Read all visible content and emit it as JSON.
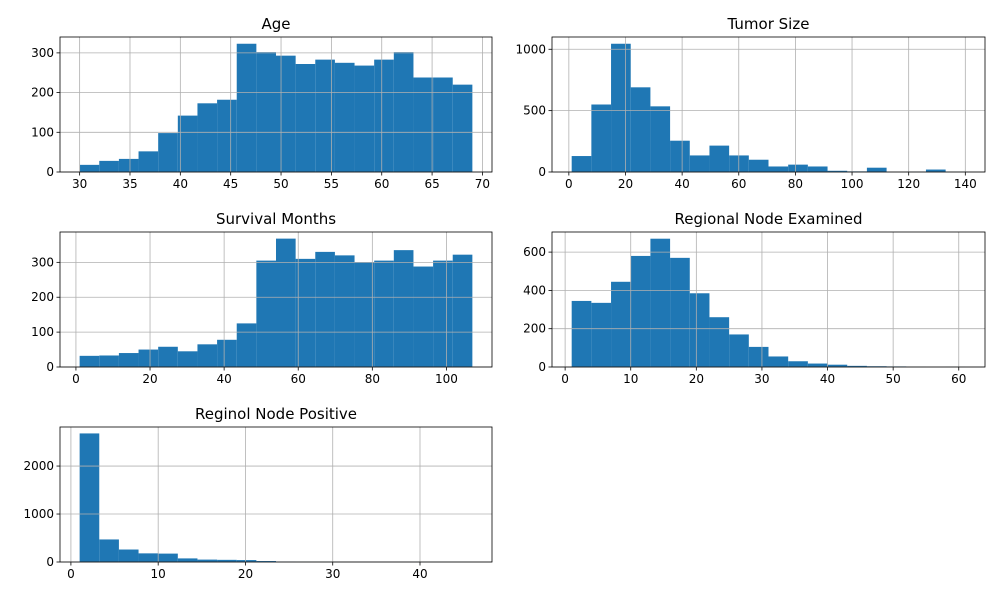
{
  "chart_data": [
    {
      "type": "histogram",
      "title": "Age",
      "color": "#1f77b4",
      "grid": true,
      "bins": [
        30,
        31.95,
        33.9,
        35.85,
        37.8,
        39.75,
        41.7,
        43.65,
        45.6,
        47.55,
        49.5,
        51.45,
        53.4,
        55.35,
        57.3,
        59.25,
        61.2,
        63.15,
        65.1,
        67.05,
        69
      ],
      "values": [
        18,
        28,
        33,
        52,
        98,
        142,
        173,
        182,
        323,
        302,
        293,
        272,
        283,
        275,
        268,
        283,
        302,
        238,
        238,
        220
      ],
      "xlim": [
        28.05,
        70.95
      ],
      "ylim": [
        0,
        340
      ],
      "xticks": [
        30,
        35,
        40,
        45,
        50,
        55,
        60,
        65,
        70
      ],
      "yticks": [
        0,
        100,
        200,
        300
      ]
    },
    {
      "type": "histogram",
      "title": "Tumor Size",
      "color": "#1f77b4",
      "grid": true,
      "bins": [
        1,
        7.95,
        14.9,
        21.85,
        28.8,
        35.75,
        42.7,
        49.65,
        56.6,
        63.55,
        70.5,
        77.45,
        84.4,
        91.35,
        98.3,
        105.25,
        112.2,
        119.15,
        126.1,
        133.05,
        140
      ],
      "values": [
        130,
        550,
        1045,
        690,
        535,
        255,
        135,
        215,
        135,
        100,
        45,
        60,
        45,
        10,
        5,
        35,
        0,
        3,
        20,
        2
      ],
      "xlim": [
        -5.95,
        146.95
      ],
      "ylim": [
        0,
        1100
      ],
      "xticks": [
        0,
        20,
        40,
        60,
        80,
        100,
        120,
        140
      ],
      "yticks": [
        0,
        500,
        1000
      ]
    },
    {
      "type": "histogram",
      "title": "Survival Months",
      "color": "#1f77b4",
      "grid": true,
      "bins": [
        1,
        6.3,
        11.6,
        16.9,
        22.2,
        27.5,
        32.8,
        38.1,
        43.4,
        48.7,
        54,
        59.3,
        64.6,
        69.9,
        75.2,
        80.5,
        85.8,
        91.1,
        96.4,
        101.7,
        107
      ],
      "values": [
        32,
        33,
        40,
        50,
        58,
        45,
        65,
        78,
        125,
        305,
        368,
        310,
        330,
        320,
        300,
        305,
        335,
        288,
        305,
        322
      ],
      "xlim": [
        -4.3,
        112.3
      ],
      "ylim": [
        0,
        387
      ],
      "xticks": [
        0,
        20,
        40,
        60,
        80,
        100
      ],
      "yticks": [
        0,
        100,
        200,
        300
      ]
    },
    {
      "type": "histogram",
      "title": "Regional Node Examined",
      "color": "#1f77b4",
      "grid": true,
      "bins": [
        1,
        4,
        7,
        10,
        13,
        16,
        19,
        22,
        25,
        28,
        31,
        34,
        37,
        40,
        43,
        46,
        49,
        52,
        55,
        58,
        61
      ],
      "values": [
        345,
        335,
        445,
        580,
        670,
        570,
        385,
        260,
        170,
        105,
        55,
        30,
        18,
        12,
        6,
        4,
        3,
        1,
        0,
        1
      ],
      "xlim": [
        -2,
        64
      ],
      "ylim": [
        0,
        705
      ],
      "xticks": [
        0,
        10,
        20,
        30,
        40,
        50,
        60
      ],
      "yticks": [
        0,
        200,
        400,
        600
      ]
    },
    {
      "type": "histogram",
      "title": "Reginol Node Positive",
      "color": "#1f77b4",
      "grid": true,
      "bins": [
        1,
        3.25,
        5.5,
        7.75,
        10,
        12.25,
        14.5,
        16.75,
        19,
        21.25,
        23.5,
        25.75,
        28,
        30.25,
        32.5,
        34.75,
        37,
        39.25,
        41.5,
        43.75,
        46
      ],
      "values": [
        2680,
        470,
        260,
        180,
        175,
        75,
        50,
        45,
        40,
        20,
        10,
        5,
        5,
        3,
        2,
        2,
        2,
        1,
        1,
        1
      ],
      "xlim": [
        -1.25,
        48.25
      ],
      "ylim": [
        0,
        2814
      ],
      "xticks": [
        0,
        10,
        20,
        30,
        40
      ],
      "yticks": [
        0,
        1000,
        2000
      ]
    }
  ]
}
